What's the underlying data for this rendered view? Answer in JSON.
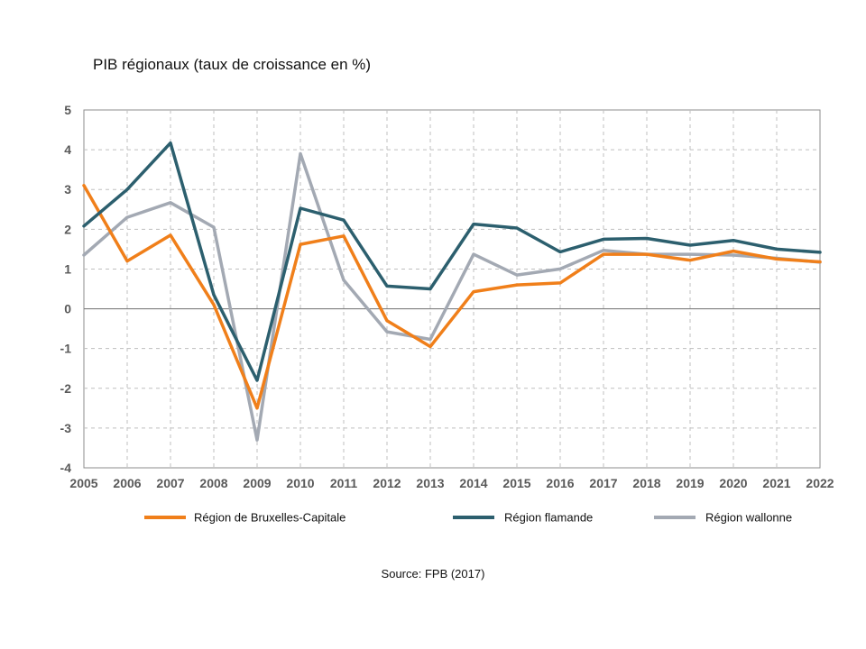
{
  "title": "PIB régionaux (taux de croissance en %)",
  "source": "Source: FPB (2017)",
  "chart_data": {
    "type": "line",
    "title": "PIB régionaux (taux de croissance en %)",
    "xlabel": "",
    "ylabel": "",
    "ylim": [
      -4,
      5
    ],
    "yticks": [
      5,
      4,
      3,
      2,
      1,
      0,
      -1,
      -2,
      -3,
      -4
    ],
    "grid": true,
    "legend_position": "bottom",
    "categories": [
      "2005",
      "2006",
      "2007",
      "2008",
      "2009",
      "2010",
      "2011",
      "2012",
      "2013",
      "2014",
      "2015",
      "2016",
      "2017",
      "2018",
      "2019",
      "2020",
      "2021",
      "2022"
    ],
    "series": [
      {
        "name": "Région de Bruxelles-Capitale",
        "color": "#F07F1A",
        "values": [
          3.1,
          1.2,
          1.85,
          0.1,
          -2.5,
          1.62,
          1.83,
          -0.3,
          -0.95,
          0.43,
          0.6,
          0.65,
          1.37,
          1.37,
          1.22,
          1.45,
          1.25,
          1.18
        ]
      },
      {
        "name": "Région flamande",
        "color": "#2C5F6E",
        "values": [
          2.08,
          3.0,
          4.17,
          0.35,
          -1.8,
          2.53,
          2.23,
          0.57,
          0.5,
          2.13,
          2.03,
          1.43,
          1.75,
          1.77,
          1.6,
          1.72,
          1.5,
          1.42
        ]
      },
      {
        "name": "Région wallonne",
        "color": "#A3A9B3",
        "values": [
          1.35,
          2.3,
          2.67,
          2.05,
          -3.3,
          3.9,
          0.72,
          -0.58,
          -0.77,
          1.37,
          0.85,
          1.0,
          1.47,
          1.37,
          1.37,
          1.35,
          1.27,
          1.17
        ]
      }
    ]
  }
}
